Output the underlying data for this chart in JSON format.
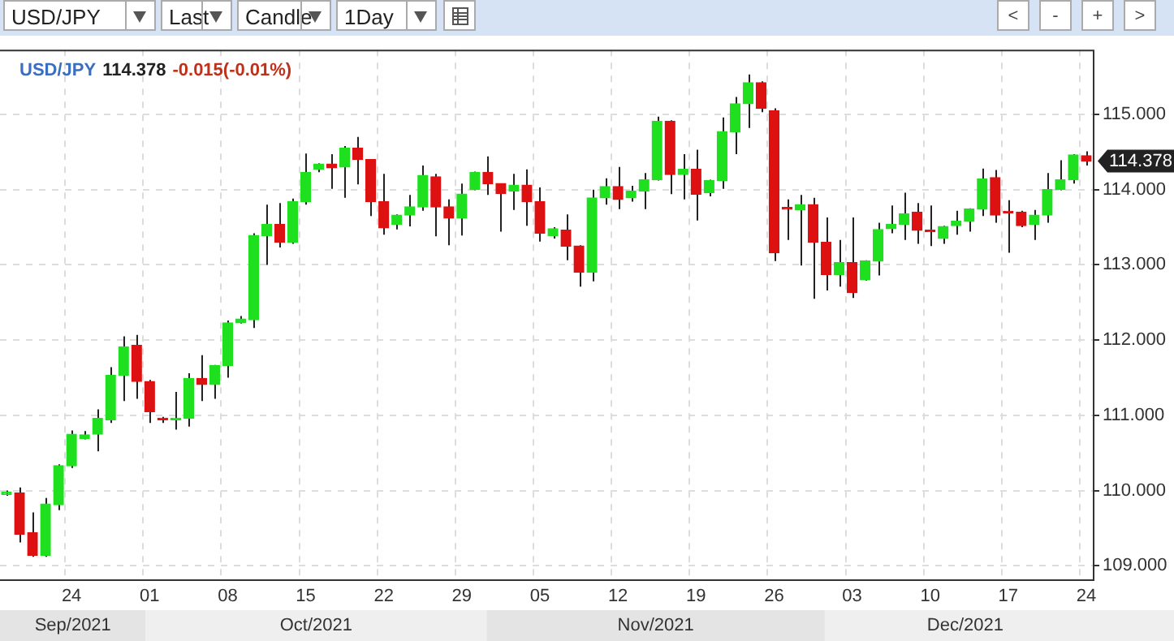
{
  "chart_data": {
    "type": "candlestick",
    "title": "USD/JPY",
    "annotations": [
      "USD/JPY",
      "Last",
      "Candle",
      "1Day",
      "<",
      "-",
      "+",
      ">",
      "114.378",
      "-0.015(-0.01%)",
      "114.378",
      "Sep/2021",
      "Oct/2021",
      "Nov/2021",
      "Dec/2021"
    ],
    "categories": [
      null,
      null,
      null,
      null,
      null,
      "24",
      null,
      null,
      null,
      null,
      null,
      "01",
      null,
      null,
      null,
      null,
      null,
      "08",
      null,
      null,
      null,
      null,
      null,
      "15",
      null,
      null,
      null,
      null,
      null,
      "22",
      null,
      null,
      null,
      null,
      null,
      "29",
      null,
      null,
      null,
      null,
      null,
      "05",
      null,
      null,
      null,
      null,
      null,
      "12",
      null,
      null,
      null,
      null,
      null,
      "19",
      null,
      null,
      null,
      null,
      null,
      "26",
      null,
      null,
      null,
      null,
      null,
      "03",
      null,
      null,
      null,
      null,
      null,
      "10",
      null,
      null,
      null,
      null,
      null,
      "17",
      null,
      null,
      null,
      null,
      null,
      "24"
    ],
    "ohlc": [
      [
        109.95,
        110.0,
        109.93,
        109.98
      ],
      [
        109.97,
        110.04,
        109.31,
        109.42
      ],
      [
        109.44,
        109.71,
        109.12,
        109.14
      ],
      [
        109.14,
        109.9,
        109.12,
        109.82
      ],
      [
        109.81,
        110.35,
        109.74,
        110.33
      ],
      [
        110.33,
        110.8,
        110.3,
        110.75
      ],
      [
        110.69,
        110.79,
        110.68,
        110.74
      ],
      [
        110.75,
        111.08,
        110.52,
        110.96
      ],
      [
        110.94,
        111.64,
        110.9,
        111.53
      ],
      [
        111.53,
        112.05,
        111.19,
        111.91
      ],
      [
        111.93,
        112.07,
        111.22,
        111.45
      ],
      [
        111.45,
        111.47,
        110.9,
        111.05
      ],
      [
        110.95,
        110.98,
        110.9,
        110.94
      ],
      [
        110.94,
        111.31,
        110.81,
        110.96
      ],
      [
        110.96,
        111.56,
        110.85,
        111.49
      ],
      [
        111.49,
        111.8,
        111.19,
        111.41
      ],
      [
        111.41,
        111.67,
        111.22,
        111.66
      ],
      [
        111.66,
        112.26,
        111.5,
        112.23
      ],
      [
        112.23,
        112.32,
        112.22,
        112.28
      ],
      [
        112.27,
        113.42,
        112.16,
        113.39
      ],
      [
        113.39,
        113.8,
        113.0,
        113.54
      ],
      [
        113.54,
        113.82,
        113.23,
        113.3
      ],
      [
        113.3,
        113.88,
        113.28,
        113.84
      ],
      [
        113.84,
        114.48,
        113.8,
        114.23
      ],
      [
        114.27,
        114.35,
        114.23,
        114.34
      ],
      [
        114.34,
        114.47,
        114.01,
        114.29
      ],
      [
        114.3,
        114.58,
        113.89,
        114.55
      ],
      [
        114.55,
        114.7,
        114.07,
        114.4
      ],
      [
        114.4,
        114.4,
        113.65,
        113.84
      ],
      [
        113.84,
        114.21,
        113.4,
        113.49
      ],
      [
        113.54,
        113.67,
        113.47,
        113.66
      ],
      [
        113.66,
        113.93,
        113.51,
        113.77
      ],
      [
        113.77,
        114.32,
        113.72,
        114.19
      ],
      [
        114.17,
        114.21,
        113.38,
        113.77
      ],
      [
        113.77,
        113.87,
        113.26,
        113.62
      ],
      [
        113.62,
        114.08,
        113.39,
        113.94
      ],
      [
        114.0,
        114.24,
        113.99,
        114.23
      ],
      [
        114.23,
        114.44,
        113.93,
        114.08
      ],
      [
        114.08,
        114.08,
        113.44,
        113.95
      ],
      [
        113.98,
        114.21,
        113.73,
        114.06
      ],
      [
        114.06,
        114.27,
        113.52,
        113.84
      ],
      [
        113.84,
        114.03,
        113.31,
        113.42
      ],
      [
        113.39,
        113.5,
        113.35,
        113.48
      ],
      [
        113.46,
        113.67,
        113.06,
        113.25
      ],
      [
        113.25,
        113.26,
        112.71,
        112.9
      ],
      [
        112.9,
        114.0,
        112.78,
        113.89
      ],
      [
        113.89,
        114.15,
        113.8,
        114.04
      ],
      [
        114.04,
        114.3,
        113.74,
        113.87
      ],
      [
        113.89,
        114.05,
        113.84,
        113.98
      ],
      [
        113.98,
        114.22,
        113.74,
        114.13
      ],
      [
        114.13,
        114.97,
        114.12,
        114.91
      ],
      [
        114.91,
        114.92,
        113.94,
        114.2
      ],
      [
        114.2,
        114.47,
        113.87,
        114.27
      ],
      [
        114.27,
        114.53,
        113.59,
        113.94
      ],
      [
        113.96,
        114.13,
        113.91,
        114.12
      ],
      [
        114.12,
        114.96,
        114.01,
        114.77
      ],
      [
        114.77,
        115.23,
        114.47,
        115.14
      ],
      [
        115.14,
        115.53,
        114.82,
        115.42
      ],
      [
        115.42,
        115.44,
        115.03,
        115.08
      ],
      [
        115.05,
        115.08,
        113.05,
        113.16
      ],
      [
        113.76,
        113.87,
        113.33,
        113.74
      ],
      [
        113.73,
        113.93,
        112.99,
        113.8
      ],
      [
        113.8,
        113.89,
        112.55,
        113.3
      ],
      [
        113.3,
        113.63,
        112.66,
        112.87
      ],
      [
        112.87,
        113.33,
        112.71,
        113.03
      ],
      [
        113.03,
        113.63,
        112.56,
        112.63
      ],
      [
        112.8,
        113.06,
        112.79,
        113.05
      ],
      [
        113.05,
        113.56,
        112.86,
        113.47
      ],
      [
        113.48,
        113.79,
        113.42,
        113.54
      ],
      [
        113.54,
        113.96,
        113.33,
        113.68
      ],
      [
        113.7,
        113.82,
        113.28,
        113.46
      ],
      [
        113.45,
        113.79,
        113.25,
        113.44
      ],
      [
        113.35,
        113.52,
        113.28,
        113.51
      ],
      [
        113.52,
        113.72,
        113.4,
        113.58
      ],
      [
        113.58,
        113.75,
        113.44,
        113.74
      ],
      [
        113.74,
        114.28,
        113.65,
        114.14
      ],
      [
        114.16,
        114.26,
        113.56,
        113.66
      ],
      [
        113.71,
        113.86,
        113.16,
        113.69
      ],
      [
        113.7,
        113.72,
        113.5,
        113.52
      ],
      [
        113.54,
        113.73,
        113.33,
        113.66
      ],
      [
        113.66,
        114.22,
        113.56,
        114.0
      ],
      [
        114.0,
        114.39,
        113.99,
        114.13
      ],
      [
        114.13,
        114.47,
        114.08,
        114.46
      ],
      [
        114.45,
        114.51,
        114.32,
        114.378
      ]
    ],
    "colors": [
      "#1fe01f",
      "#dd1111",
      "#dd1111",
      "#1fe01f",
      "#1fe01f",
      "#1fe01f",
      "#1fe01f",
      "#1fe01f",
      "#1fe01f",
      "#1fe01f",
      "#dd1111",
      "#dd1111",
      "#dd1111",
      "#1fe01f",
      "#1fe01f",
      "#dd1111",
      "#1fe01f",
      "#1fe01f",
      "#1fe01f",
      "#1fe01f",
      "#1fe01f",
      "#dd1111",
      "#1fe01f",
      "#1fe01f",
      "#1fe01f",
      "#dd1111",
      "#1fe01f",
      "#dd1111",
      "#dd1111",
      "#dd1111",
      "#1fe01f",
      "#1fe01f",
      "#1fe01f",
      "#dd1111",
      "#dd1111",
      "#1fe01f",
      "#1fe01f",
      "#dd1111",
      "#dd1111",
      "#1fe01f",
      "#dd1111",
      "#dd1111",
      "#1fe01f",
      "#dd1111",
      "#dd1111",
      "#1fe01f",
      "#1fe01f",
      "#dd1111",
      "#1fe01f",
      "#1fe01f",
      "#1fe01f",
      "#dd1111",
      "#1fe01f",
      "#dd1111",
      "#1fe01f",
      "#1fe01f",
      "#1fe01f",
      "#1fe01f",
      "#dd1111",
      "#dd1111",
      "#dd1111",
      "#1fe01f",
      "#dd1111",
      "#dd1111",
      "#1fe01f",
      "#dd1111",
      "#1fe01f",
      "#1fe01f",
      "#1fe01f",
      "#1fe01f",
      "#dd1111",
      "#dd1111",
      "#1fe01f",
      "#1fe01f",
      "#1fe01f",
      "#1fe01f",
      "#dd1111",
      "#dd1111",
      "#dd1111",
      "#1fe01f",
      "#1fe01f",
      "#1fe01f",
      "#1fe01f",
      "#dd1111"
    ],
    "ylim": [
      108.82,
      115.86
    ],
    "yticks": [
      {
        "value": 109,
        "label": "109.000"
      },
      {
        "value": 110,
        "label": "110.000"
      },
      {
        "value": 111,
        "label": "111.000"
      },
      {
        "value": 112,
        "label": "112.000"
      },
      {
        "value": 113,
        "label": "113.000"
      },
      {
        "value": 114,
        "label": "114.000"
      },
      {
        "value": 115,
        "label": "115.000"
      }
    ],
    "grid": true,
    "legend": false
  }
}
